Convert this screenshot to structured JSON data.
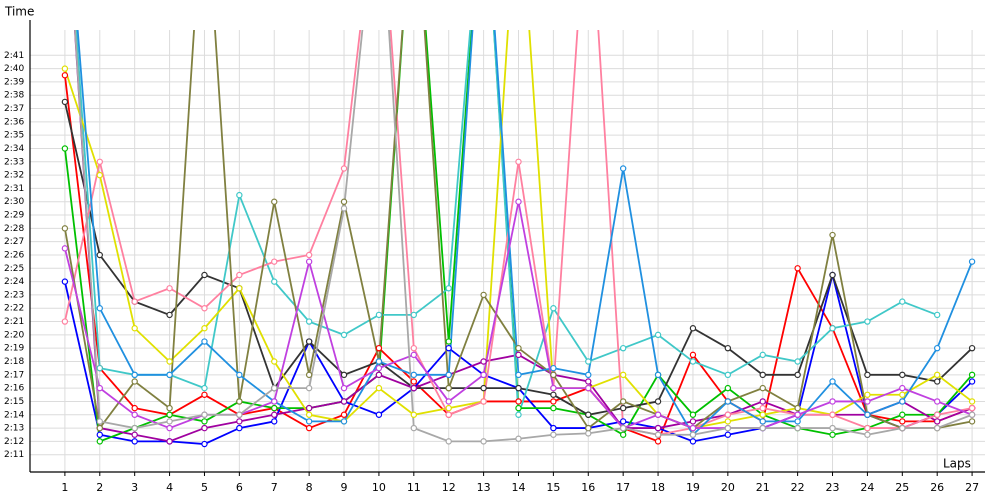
{
  "chart_data": {
    "type": "line",
    "y_label": "Time",
    "x_label": "Laps",
    "xlim": [
      0,
      27.37
    ],
    "ylim": [
      129.7,
      162.9
    ],
    "xticks": [
      1,
      2,
      3,
      4,
      5,
      6,
      7,
      8,
      9,
      10,
      11,
      12,
      13,
      14,
      15,
      16,
      17,
      18,
      19,
      20,
      21,
      22,
      23,
      24,
      25,
      26,
      27
    ],
    "yticks": [
      {
        "value": 131,
        "label": "2:11"
      },
      {
        "value": 132,
        "label": "2:12"
      },
      {
        "value": 133,
        "label": "2:13"
      },
      {
        "value": 134,
        "label": "2:14"
      },
      {
        "value": 135,
        "label": "2:15"
      },
      {
        "value": 136,
        "label": "2:16"
      },
      {
        "value": 137,
        "label": "2:17"
      },
      {
        "value": 138,
        "label": "2:18"
      },
      {
        "value": 139,
        "label": "2:19"
      },
      {
        "value": 140,
        "label": "2:20"
      },
      {
        "value": 141,
        "label": "2:21"
      },
      {
        "value": 142,
        "label": "2:22"
      },
      {
        "value": 143,
        "label": "2:23"
      },
      {
        "value": 144,
        "label": "2:24"
      },
      {
        "value": 145,
        "label": "2:25"
      },
      {
        "value": 146,
        "label": "2:26"
      },
      {
        "value": 147,
        "label": "2:27"
      },
      {
        "value": 148,
        "label": "2:28"
      },
      {
        "value": 149,
        "label": "2:29"
      },
      {
        "value": 150,
        "label": "2:30"
      },
      {
        "value": 151,
        "label": "2:31"
      },
      {
        "value": 152,
        "label": "2:32"
      },
      {
        "value": 153,
        "label": "2:33"
      },
      {
        "value": 154,
        "label": "2:34"
      },
      {
        "value": 155,
        "label": "2:35"
      },
      {
        "value": 156,
        "label": "2:36"
      },
      {
        "value": 157,
        "label": "2:37"
      },
      {
        "value": 158,
        "label": "2:38"
      },
      {
        "value": 159,
        "label": "2:39"
      },
      {
        "value": 160,
        "label": "2:40"
      },
      {
        "value": 161,
        "label": "2:41"
      }
    ],
    "grid": true,
    "x": [
      1,
      2,
      3,
      4,
      5,
      6,
      7,
      8,
      9,
      10,
      11,
      12,
      13,
      14,
      15,
      16,
      17,
      18,
      19,
      20,
      21,
      22,
      23,
      24,
      25,
      26,
      27
    ],
    "series": [
      {
        "color": "#ff0000",
        "values": [
          159.5,
          137.5,
          134.5,
          134,
          135.5,
          134,
          134.5,
          133,
          134,
          139,
          136.5,
          134,
          135,
          135,
          135,
          136,
          133,
          132,
          138.5,
          135,
          133.5,
          145,
          140.5,
          134,
          133.5,
          133.5,
          134.5
        ]
      },
      {
        "color": "#0000ff",
        "values": [
          144,
          132.5,
          132,
          132,
          131.8,
          133,
          133.5,
          139.5,
          135,
          134,
          136,
          139,
          137,
          136,
          133,
          133,
          133.5,
          133,
          132,
          132.5,
          133,
          134,
          144.5,
          134,
          133,
          134,
          136.5
        ]
      },
      {
        "color": "#00c000",
        "values": [
          154,
          132,
          133,
          134,
          133.5,
          135,
          134.5,
          134.5,
          135,
          137,
          175,
          139.5,
          175,
          134.5,
          134.5,
          134,
          132.5,
          137,
          134,
          136,
          134,
          133,
          132.5,
          133,
          134,
          134,
          137
        ]
      },
      {
        "color": "#333333",
        "values": [
          157.5,
          146,
          142.5,
          141.5,
          144.5,
          143.5,
          136,
          139.5,
          137,
          138,
          136,
          136,
          136,
          136,
          135.5,
          134,
          134.5,
          135,
          140.5,
          139,
          137,
          137,
          144.5,
          137,
          137,
          136.5,
          139
        ]
      },
      {
        "color": "#a000a0",
        "values": [
          175,
          133,
          132.5,
          132,
          133,
          133.5,
          134,
          134.5,
          135,
          137,
          136,
          137,
          138,
          138.5,
          137,
          136.5,
          133,
          133,
          133.5,
          134,
          135,
          134,
          134,
          134,
          135,
          133.5,
          134.5
        ]
      },
      {
        "color": "#40c8c8",
        "values": [
          175,
          137.5,
          137,
          137,
          136,
          150.5,
          144,
          141,
          140,
          141.5,
          141.5,
          143.5,
          175,
          134,
          142,
          138,
          139,
          140,
          138,
          137,
          138.5,
          138,
          140.5,
          141,
          142.5,
          141.5,
          null
        ]
      },
      {
        "color": "#e0e000",
        "values": [
          160,
          152,
          140.5,
          138,
          140.5,
          143.5,
          138,
          134,
          133.5,
          136,
          134,
          134.5,
          135,
          175,
          136,
          136,
          137,
          134,
          133,
          133.5,
          134,
          134.5,
          134,
          135.5,
          135.5,
          137,
          135
        ]
      },
      {
        "color": "#ff80a0",
        "values": [
          141,
          153,
          142.5,
          143.5,
          142,
          144.5,
          145.5,
          146,
          152.5,
          175,
          139,
          134,
          135,
          153,
          136,
          175,
          133,
          132.5,
          133,
          134,
          134.5,
          134,
          134,
          133,
          133,
          134,
          134.5
        ]
      },
      {
        "color": "#808040",
        "values": [
          148,
          133,
          136.5,
          134.5,
          175,
          135,
          150,
          137,
          150,
          138,
          175,
          136,
          143,
          139,
          137,
          133,
          135,
          134,
          133,
          135,
          136,
          134.5,
          147.5,
          134,
          133,
          133,
          133.5
        ]
      },
      {
        "color": "#2090e0",
        "values": [
          175,
          142,
          137,
          137,
          139.5,
          137,
          135,
          133.5,
          133.5,
          138,
          137,
          137,
          175,
          137,
          137.5,
          137,
          152.5,
          137,
          132.5,
          135,
          133.5,
          133.5,
          136.5,
          134,
          135,
          139,
          145.5
        ]
      },
      {
        "color": "#c040e0",
        "values": [
          146.5,
          136,
          134,
          133,
          134,
          134,
          135,
          145.5,
          136,
          137.5,
          138.5,
          135,
          137,
          150,
          136,
          136,
          133,
          134,
          133,
          133,
          133,
          134,
          135,
          135,
          136,
          135,
          134
        ]
      },
      {
        "color": "#a8a8a8",
        "values": [
          175,
          133.5,
          133,
          133.5,
          134,
          134,
          136,
          136,
          149.5,
          175,
          133,
          132,
          132,
          132.2,
          132.5,
          132.6,
          133,
          132.5,
          132.5,
          133,
          133,
          133,
          133,
          132.5,
          133,
          133,
          134
        ]
      }
    ]
  }
}
